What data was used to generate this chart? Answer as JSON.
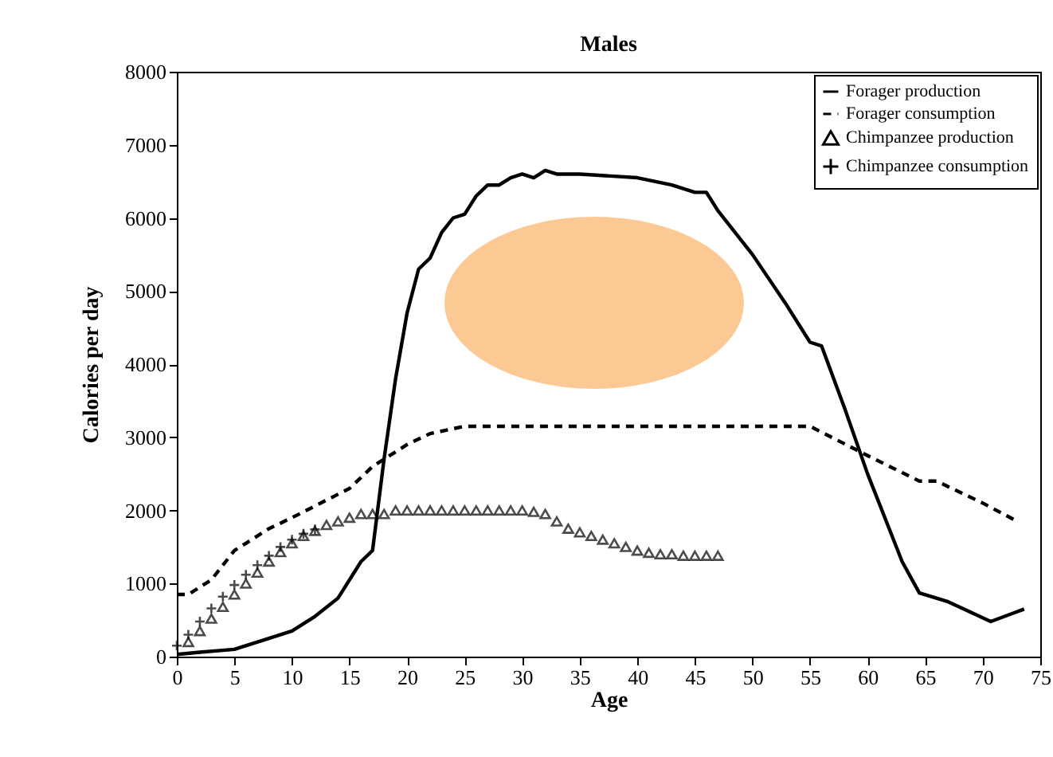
{
  "chart_data": {
    "type": "line",
    "title": "Males",
    "xlabel": "Age",
    "ylabel": "Calories per day",
    "xlim": [
      0,
      75
    ],
    "xticks": [
      0,
      5,
      10,
      15,
      20,
      25,
      30,
      35,
      40,
      45,
      50,
      55,
      60,
      65,
      70,
      75
    ],
    "ylim": [
      0,
      8000
    ],
    "yticks": [
      0,
      1000,
      2000,
      3000,
      4000,
      5000,
      6000,
      7000,
      8000
    ],
    "grid": false,
    "legend": "top right",
    "series": [
      {
        "name": "Forager production",
        "type": "line",
        "line_style": "solid",
        "color": "#000000",
        "x": [
          0,
          2,
          5,
          8,
          10,
          12,
          14,
          16,
          17,
          18,
          19,
          20,
          21,
          22,
          23,
          24,
          25,
          26,
          27,
          28,
          29,
          30,
          31,
          32,
          33,
          35,
          40,
          43,
          45,
          46,
          47,
          50,
          53,
          55,
          56,
          58,
          60,
          62,
          63,
          64.5,
          67,
          70.7,
          73.6
        ],
        "values": [
          30,
          60,
          100,
          250,
          350,
          550,
          800,
          1300,
          1450,
          2700,
          3800,
          4700,
          5300,
          5450,
          5800,
          6000,
          6050,
          6300,
          6450,
          6450,
          6550,
          6600,
          6550,
          6650,
          6600,
          6600,
          6550,
          6450,
          6350,
          6350,
          6100,
          5500,
          4800,
          4300,
          4250,
          3400,
          2500,
          1700,
          1300,
          870,
          750,
          480,
          650
        ]
      },
      {
        "name": "Forager consumption",
        "type": "line",
        "line_style": "dashed",
        "color": "#000000",
        "x": [
          0,
          1,
          2,
          3,
          5,
          6,
          8,
          10,
          15,
          17,
          20,
          22,
          25,
          55,
          60,
          64.5,
          66,
          70,
          73
        ],
        "values": [
          850,
          850,
          950,
          1050,
          1450,
          1550,
          1750,
          1900,
          2300,
          2600,
          2900,
          3050,
          3150,
          3150,
          2750,
          2400,
          2400,
          2100,
          1850
        ]
      },
      {
        "name": "Chimpanzee production",
        "type": "scatter",
        "marker": "triangle",
        "color": "#000000",
        "x": [
          1,
          2,
          3,
          4,
          5,
          6,
          7,
          8,
          9,
          10,
          11,
          12,
          13,
          14,
          15,
          16,
          17,
          18,
          19,
          20,
          21,
          22,
          23,
          24,
          25,
          26,
          27,
          28,
          29,
          30,
          31,
          32,
          33,
          34,
          35,
          36,
          37,
          38,
          39,
          40,
          41,
          42,
          43,
          44,
          45,
          46,
          47
        ],
        "values": [
          200,
          350,
          520,
          680,
          850,
          1000,
          1150,
          1300,
          1430,
          1550,
          1650,
          1720,
          1800,
          1850,
          1900,
          1950,
          1950,
          1950,
          2000,
          2000,
          2000,
          2000,
          2000,
          2000,
          2000,
          2000,
          2000,
          2000,
          2000,
          2000,
          1980,
          1950,
          1850,
          1750,
          1700,
          1650,
          1600,
          1550,
          1500,
          1450,
          1420,
          1400,
          1400,
          1380,
          1380,
          1380,
          1380
        ]
      },
      {
        "name": "Chimpanzee consumption",
        "type": "scatter",
        "marker": "cross",
        "color": "#000000",
        "x": [
          0,
          1,
          2,
          3,
          4,
          5,
          6,
          7,
          8,
          9,
          10,
          11,
          12
        ],
        "values": [
          150,
          300,
          480,
          660,
          820,
          980,
          1120,
          1250,
          1380,
          1500,
          1600,
          1680,
          1740
        ]
      }
    ]
  }
}
